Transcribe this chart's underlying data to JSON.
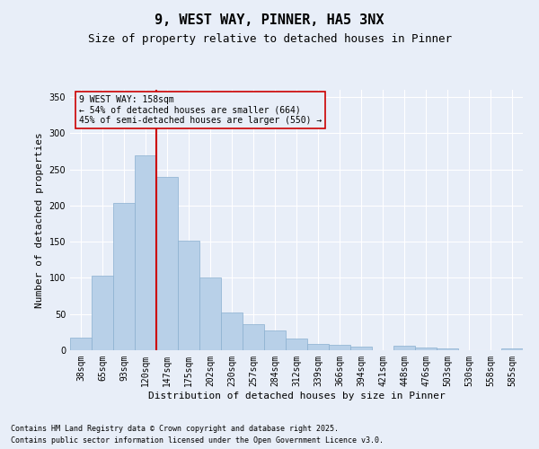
{
  "title1": "9, WEST WAY, PINNER, HA5 3NX",
  "title2": "Size of property relative to detached houses in Pinner",
  "xlabel": "Distribution of detached houses by size in Pinner",
  "ylabel": "Number of detached properties",
  "categories": [
    "38sqm",
    "65sqm",
    "93sqm",
    "120sqm",
    "147sqm",
    "175sqm",
    "202sqm",
    "230sqm",
    "257sqm",
    "284sqm",
    "312sqm",
    "339sqm",
    "366sqm",
    "394sqm",
    "421sqm",
    "448sqm",
    "476sqm",
    "503sqm",
    "530sqm",
    "558sqm",
    "585sqm"
  ],
  "values": [
    18,
    103,
    204,
    269,
    240,
    151,
    101,
    52,
    36,
    27,
    16,
    9,
    7,
    5,
    0,
    6,
    4,
    2,
    0,
    0,
    3
  ],
  "bar_color": "#b8d0e8",
  "bar_edge_color": "#8ab0d0",
  "background_color": "#e8eef8",
  "grid_color": "#ffffff",
  "vline_color": "#cc0000",
  "vline_x_index": 4,
  "annotation_box_text": "9 WEST WAY: 158sqm\n← 54% of detached houses are smaller (664)\n45% of semi-detached houses are larger (550) →",
  "annotation_box_color": "#cc0000",
  "ylim": [
    0,
    360
  ],
  "yticks": [
    0,
    50,
    100,
    150,
    200,
    250,
    300,
    350
  ],
  "title1_fontsize": 11,
  "title2_fontsize": 9,
  "xlabel_fontsize": 8,
  "ylabel_fontsize": 8,
  "tick_fontsize": 7,
  "annotation_fontsize": 7,
  "footnote1": "Contains HM Land Registry data © Crown copyright and database right 2025.",
  "footnote2": "Contains public sector information licensed under the Open Government Licence v3.0.",
  "footnote_fontsize": 6
}
